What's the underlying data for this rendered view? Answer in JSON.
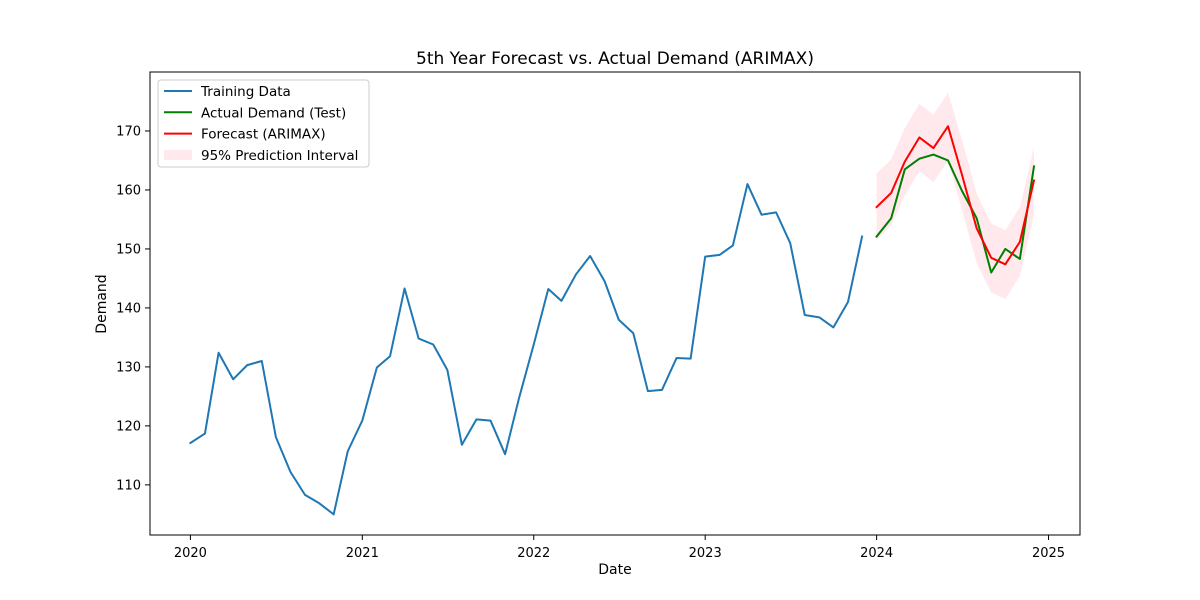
{
  "chart_data": {
    "type": "line",
    "title": "5th Year Forecast vs. Actual Demand (ARIMAX)",
    "xlabel": "Date",
    "ylabel": "Demand",
    "xlim": [
      "2019-10-07",
      "2025-03-09"
    ],
    "ylim": [
      101.5,
      180.0
    ],
    "xticks": [
      {
        "date": "2020-01-01",
        "label": "2020"
      },
      {
        "date": "2021-01-01",
        "label": "2021"
      },
      {
        "date": "2022-01-01",
        "label": "2022"
      },
      {
        "date": "2023-01-01",
        "label": "2023"
      },
      {
        "date": "2024-01-01",
        "label": "2024"
      },
      {
        "date": "2025-01-01",
        "label": "2025"
      }
    ],
    "yticks": [
      110,
      120,
      130,
      140,
      150,
      160,
      170
    ],
    "legend": {
      "position": "upper-left",
      "entries": [
        "Training Data",
        "Actual Demand (Test)",
        "Forecast (ARIMAX)",
        "95% Prediction Interval"
      ]
    },
    "series": [
      {
        "name": "Training Data",
        "color": "#1f77b4",
        "style": "line",
        "x": [
          "2020-01-01",
          "2020-02-01",
          "2020-03-01",
          "2020-04-01",
          "2020-05-01",
          "2020-06-01",
          "2020-07-01",
          "2020-08-01",
          "2020-09-01",
          "2020-10-01",
          "2020-11-01",
          "2020-12-01",
          "2021-01-01",
          "2021-02-01",
          "2021-03-01",
          "2021-04-01",
          "2021-05-01",
          "2021-06-01",
          "2021-07-01",
          "2021-08-01",
          "2021-09-01",
          "2021-10-01",
          "2021-11-01",
          "2021-12-01",
          "2022-01-01",
          "2022-02-01",
          "2022-03-01",
          "2022-04-01",
          "2022-05-01",
          "2022-06-01",
          "2022-07-01",
          "2022-08-01",
          "2022-09-01",
          "2022-10-01",
          "2022-11-01",
          "2022-12-01",
          "2023-01-01",
          "2023-02-01",
          "2023-03-01",
          "2023-04-01",
          "2023-05-01",
          "2023-06-01",
          "2023-07-01",
          "2023-08-01",
          "2023-09-01",
          "2023-10-01",
          "2023-11-01",
          "2023-12-01"
        ],
        "values": [
          117.1,
          118.7,
          132.4,
          127.9,
          130.3,
          131.0,
          118.1,
          112.2,
          108.3,
          106.9,
          105.0,
          115.7,
          120.9,
          129.9,
          131.8,
          143.3,
          134.8,
          133.8,
          129.5,
          116.8,
          121.1,
          120.9,
          115.2,
          124.8,
          133.8,
          143.2,
          141.2,
          145.7,
          148.8,
          144.5,
          138.0,
          135.7,
          125.9,
          126.1,
          131.5,
          131.4,
          148.7,
          149.0,
          150.6,
          161.0,
          155.8,
          156.2,
          151.0,
          138.8,
          138.4,
          136.7,
          141.0,
          152.1
        ]
      },
      {
        "name": "Actual Demand (Test)",
        "color": "#008000",
        "style": "line",
        "x": [
          "2024-01-01",
          "2024-02-01",
          "2024-03-01",
          "2024-04-01",
          "2024-05-01",
          "2024-06-01",
          "2024-07-01",
          "2024-08-01",
          "2024-09-01",
          "2024-10-01",
          "2024-11-01",
          "2024-12-01"
        ],
        "values": [
          152.1,
          155.2,
          163.5,
          165.3,
          166.0,
          165.0,
          159.8,
          155.2,
          146.0,
          150.0,
          148.3,
          164.0
        ]
      },
      {
        "name": "Forecast (ARIMAX)",
        "color": "#ff0000",
        "style": "line",
        "x": [
          "2024-01-01",
          "2024-02-01",
          "2024-03-01",
          "2024-04-01",
          "2024-05-01",
          "2024-06-01",
          "2024-07-01",
          "2024-08-01",
          "2024-09-01",
          "2024-10-01",
          "2024-11-01",
          "2024-12-01"
        ],
        "values": [
          157.1,
          159.5,
          164.8,
          168.9,
          167.1,
          170.8,
          162.5,
          153.5,
          148.5,
          147.4,
          151.2,
          161.6
        ]
      },
      {
        "name": "95% Prediction Interval",
        "color": "#ffc0cb",
        "style": "band",
        "x": [
          "2024-01-01",
          "2024-02-01",
          "2024-03-01",
          "2024-04-01",
          "2024-05-01",
          "2024-06-01",
          "2024-07-01",
          "2024-08-01",
          "2024-09-01",
          "2024-10-01",
          "2024-11-01",
          "2024-12-01"
        ],
        "lower": [
          151.5,
          154.0,
          159.0,
          163.2,
          161.3,
          165.0,
          156.5,
          147.6,
          142.6,
          141.5,
          145.4,
          155.9
        ],
        "upper": [
          162.8,
          165.2,
          170.5,
          174.6,
          172.8,
          176.5,
          168.4,
          159.4,
          154.3,
          153.2,
          157.1,
          167.3
        ]
      }
    ]
  }
}
